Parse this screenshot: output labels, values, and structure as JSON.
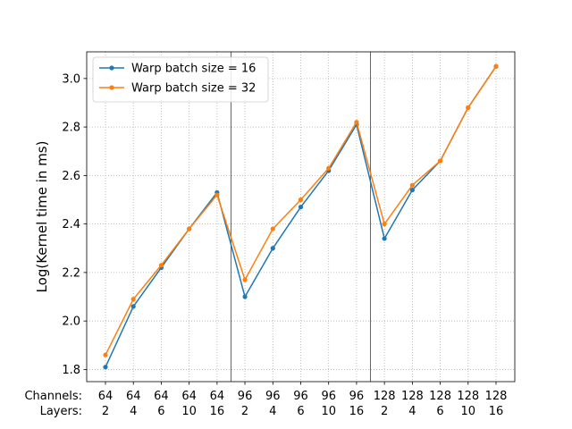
{
  "chart_data": {
    "type": "line",
    "ylabel": "Log(Kernel time in ms)",
    "ylim": [
      1.75,
      3.11
    ],
    "yticks": [
      "1.8",
      "2.0",
      "2.2",
      "2.4",
      "2.6",
      "2.8",
      "3.0"
    ],
    "ytick_values": [
      1.8,
      2.0,
      2.2,
      2.4,
      2.6,
      2.8,
      3.0
    ],
    "row_labels": [
      "Channels:",
      "Layers:"
    ],
    "channels": [
      "64",
      "64",
      "64",
      "64",
      "64",
      "96",
      "96",
      "96",
      "96",
      "96",
      "128",
      "128",
      "128",
      "128",
      "128"
    ],
    "layers": [
      "2",
      "4",
      "6",
      "10",
      "16",
      "2",
      "4",
      "6",
      "10",
      "16",
      "2",
      "4",
      "6",
      "10",
      "16"
    ],
    "grid": true,
    "legend_position": "upper-left",
    "group_separators_after": [
      4,
      9
    ],
    "series": [
      {
        "name": "Warp batch size = 16",
        "color": "#1f77b4",
        "values": [
          1.81,
          2.06,
          2.22,
          2.38,
          2.53,
          2.1,
          2.3,
          2.47,
          2.62,
          2.81,
          2.34,
          2.54,
          2.66,
          2.88,
          3.05
        ]
      },
      {
        "name": "Warp batch size = 32",
        "color": "#ff7f0e",
        "values": [
          1.86,
          2.09,
          2.23,
          2.38,
          2.52,
          2.17,
          2.38,
          2.5,
          2.63,
          2.82,
          2.4,
          2.56,
          2.66,
          2.88,
          3.05
        ]
      }
    ]
  }
}
